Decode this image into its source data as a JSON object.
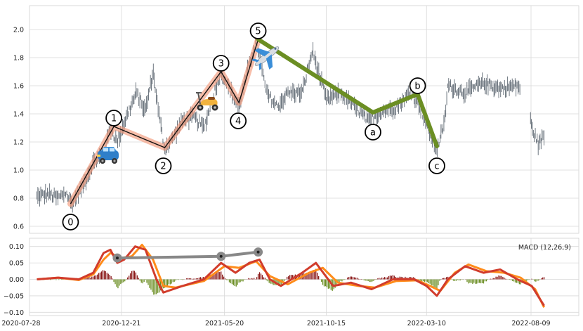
{
  "chart_data": [
    {
      "type": "line",
      "panel": "price",
      "x_ticks": [
        "2020-07-28",
        "2020-12-21",
        "2021-05-20",
        "2021-10-15",
        "2022-03-10",
        "2022-08-09"
      ],
      "y_ticks": [
        "0.6",
        "0.8",
        "1.0",
        "1.2",
        "1.4",
        "1.6",
        "1.8",
        "2.0"
      ],
      "ylim": [
        0.55,
        2.17
      ],
      "grid": true,
      "price_path": [
        [
          "2020-08-20",
          0.81
        ],
        [
          "2020-09-05",
          0.83
        ],
        [
          "2020-09-20",
          0.8
        ],
        [
          "2020-10-01",
          0.84
        ],
        [
          "2020-10-10",
          0.76
        ],
        [
          "2020-10-25",
          0.88
        ],
        [
          "2020-11-10",
          1.05
        ],
        [
          "2020-11-25",
          1.12
        ],
        [
          "2020-12-05",
          1.3
        ],
        [
          "2020-12-15",
          1.2
        ],
        [
          "2020-12-30",
          1.4
        ],
        [
          "2021-01-12",
          1.55
        ],
        [
          "2021-01-25",
          1.42
        ],
        [
          "2021-02-05",
          1.7
        ],
        [
          "2021-02-15",
          1.35
        ],
        [
          "2021-02-22",
          1.15
        ],
        [
          "2021-03-05",
          1.22
        ],
        [
          "2021-03-20",
          1.35
        ],
        [
          "2021-04-05",
          1.38
        ],
        [
          "2021-04-20",
          1.3
        ],
        [
          "2021-05-05",
          1.55
        ],
        [
          "2021-05-15",
          1.7
        ],
        [
          "2021-05-30",
          1.55
        ],
        [
          "2021-06-10",
          1.45
        ],
        [
          "2021-06-25",
          1.75
        ],
        [
          "2021-07-05",
          1.93
        ],
        [
          "2021-07-20",
          1.55
        ],
        [
          "2021-08-05",
          1.45
        ],
        [
          "2021-08-20",
          1.55
        ],
        [
          "2021-09-10",
          1.55
        ],
        [
          "2021-09-25",
          1.85
        ],
        [
          "2021-10-15",
          1.5
        ],
        [
          "2021-11-05",
          1.55
        ],
        [
          "2021-11-25",
          1.45
        ],
        [
          "2021-12-15",
          1.35
        ],
        [
          "2022-01-05",
          1.42
        ],
        [
          "2022-01-25",
          1.45
        ],
        [
          "2022-02-15",
          1.55
        ],
        [
          "2022-03-01",
          1.45
        ],
        [
          "2022-03-15",
          1.25
        ],
        [
          "2022-03-25",
          1.15
        ],
        [
          "2022-04-05",
          1.33
        ],
        [
          "2022-04-10",
          1.6
        ],
        [
          "2022-05-05",
          1.55
        ],
        [
          "2022-06-01",
          1.62
        ],
        [
          "2022-06-25",
          1.58
        ],
        [
          "2022-07-20",
          1.6
        ],
        [
          "2022-08-01",
          1.55
        ],
        [
          "2022-08-10",
          1.3
        ],
        [
          "2022-08-20",
          1.18
        ],
        [
          "2022-08-28",
          1.25
        ]
      ],
      "price_gap": [
        [
          "2022-07-25",
          "2022-08-08"
        ]
      ],
      "impulse_waves": [
        {
          "label": "0",
          "date": "2020-10-08",
          "value": 0.76
        },
        {
          "label": "1",
          "date": "2020-12-10",
          "value": 1.31
        },
        {
          "label": "2",
          "date": "2021-02-22",
          "value": 1.16
        },
        {
          "label": "3",
          "date": "2021-05-15",
          "value": 1.7
        },
        {
          "label": "4",
          "date": "2021-06-10",
          "value": 1.48
        },
        {
          "label": "5",
          "date": "2021-07-08",
          "value": 1.93
        }
      ],
      "correction_waves": [
        {
          "label": "5",
          "date": "2021-07-08",
          "value": 1.93
        },
        {
          "label": "a",
          "date": "2021-12-22",
          "value": 1.41
        },
        {
          "label": "b",
          "date": "2022-02-25",
          "value": 1.54
        },
        {
          "label": "c",
          "date": "2022-03-25",
          "value": 1.17
        }
      ],
      "icons": [
        "car-icon",
        "scooter-icon",
        "airplane-icon"
      ]
    },
    {
      "type": "bar",
      "panel": "macd",
      "legend": "MACD (12,26,9)",
      "y_ticks": [
        "−0.10",
        "−0.05",
        "0.00",
        "0.05",
        "0.10"
      ],
      "ylim": [
        -0.11,
        0.125
      ],
      "grid": true,
      "macd_line": [
        [
          "2020-08-20",
          0.0
        ],
        [
          "2020-09-20",
          0.005
        ],
        [
          "2020-10-20",
          0.0
        ],
        [
          "2020-11-10",
          0.02
        ],
        [
          "2020-11-25",
          0.08
        ],
        [
          "2020-12-05",
          0.09
        ],
        [
          "2020-12-15",
          0.05
        ],
        [
          "2020-12-25",
          0.06
        ],
        [
          "2021-01-10",
          0.1
        ],
        [
          "2021-01-25",
          0.09
        ],
        [
          "2021-02-10",
          0.0
        ],
        [
          "2021-02-20",
          -0.04
        ],
        [
          "2021-03-20",
          -0.02
        ],
        [
          "2021-04-20",
          0.0
        ],
        [
          "2021-05-15",
          0.05
        ],
        [
          "2021-06-05",
          0.02
        ],
        [
          "2021-06-25",
          0.05
        ],
        [
          "2021-07-10",
          0.06
        ],
        [
          "2021-07-25",
          0.0
        ],
        [
          "2021-08-10",
          -0.02
        ],
        [
          "2021-09-10",
          0.02
        ],
        [
          "2021-09-30",
          0.05
        ],
        [
          "2021-10-25",
          -0.02
        ],
        [
          "2021-11-20",
          -0.01
        ],
        [
          "2021-12-20",
          -0.03
        ],
        [
          "2022-01-20",
          0.0
        ],
        [
          "2022-02-20",
          0.0
        ],
        [
          "2022-03-10",
          -0.02
        ],
        [
          "2022-03-25",
          -0.05
        ],
        [
          "2022-04-10",
          0.0
        ],
        [
          "2022-05-05",
          0.04
        ],
        [
          "2022-06-01",
          0.02
        ],
        [
          "2022-06-25",
          0.03
        ],
        [
          "2022-07-20",
          0.0
        ],
        [
          "2022-08-10",
          -0.02
        ],
        [
          "2022-08-28",
          -0.08
        ]
      ],
      "signal_line": [
        [
          "2020-08-20",
          0.0
        ],
        [
          "2020-09-20",
          0.005
        ],
        [
          "2020-10-20",
          -0.002
        ],
        [
          "2020-11-10",
          0.015
        ],
        [
          "2020-11-25",
          0.06
        ],
        [
          "2020-12-05",
          0.08
        ],
        [
          "2020-12-20",
          0.065
        ],
        [
          "2021-01-05",
          0.07
        ],
        [
          "2021-01-20",
          0.105
        ],
        [
          "2021-02-05",
          0.06
        ],
        [
          "2021-02-20",
          -0.02
        ],
        [
          "2021-03-10",
          -0.025
        ],
        [
          "2021-04-20",
          -0.005
        ],
        [
          "2021-05-20",
          0.04
        ],
        [
          "2021-06-10",
          0.035
        ],
        [
          "2021-07-05",
          0.055
        ],
        [
          "2021-07-25",
          0.01
        ],
        [
          "2021-08-20",
          -0.015
        ],
        [
          "2021-09-20",
          0.02
        ],
        [
          "2021-10-10",
          0.035
        ],
        [
          "2021-11-01",
          -0.01
        ],
        [
          "2021-12-01",
          -0.02
        ],
        [
          "2021-12-25",
          -0.025
        ],
        [
          "2022-01-25",
          -0.005
        ],
        [
          "2022-02-25",
          -0.003
        ],
        [
          "2022-03-15",
          -0.02
        ],
        [
          "2022-03-30",
          -0.035
        ],
        [
          "2022-04-20",
          0.02
        ],
        [
          "2022-05-10",
          0.045
        ],
        [
          "2022-06-05",
          0.025
        ],
        [
          "2022-07-01",
          0.02
        ],
        [
          "2022-07-25",
          0.005
        ],
        [
          "2022-08-15",
          -0.03
        ],
        [
          "2022-08-28",
          -0.085
        ]
      ],
      "divergence_markers": [
        {
          "date": "2020-12-15",
          "value": 0.065
        },
        {
          "date": "2021-05-15",
          "value": 0.07
        },
        {
          "date": "2021-07-08",
          "value": 0.083
        }
      ]
    }
  ]
}
